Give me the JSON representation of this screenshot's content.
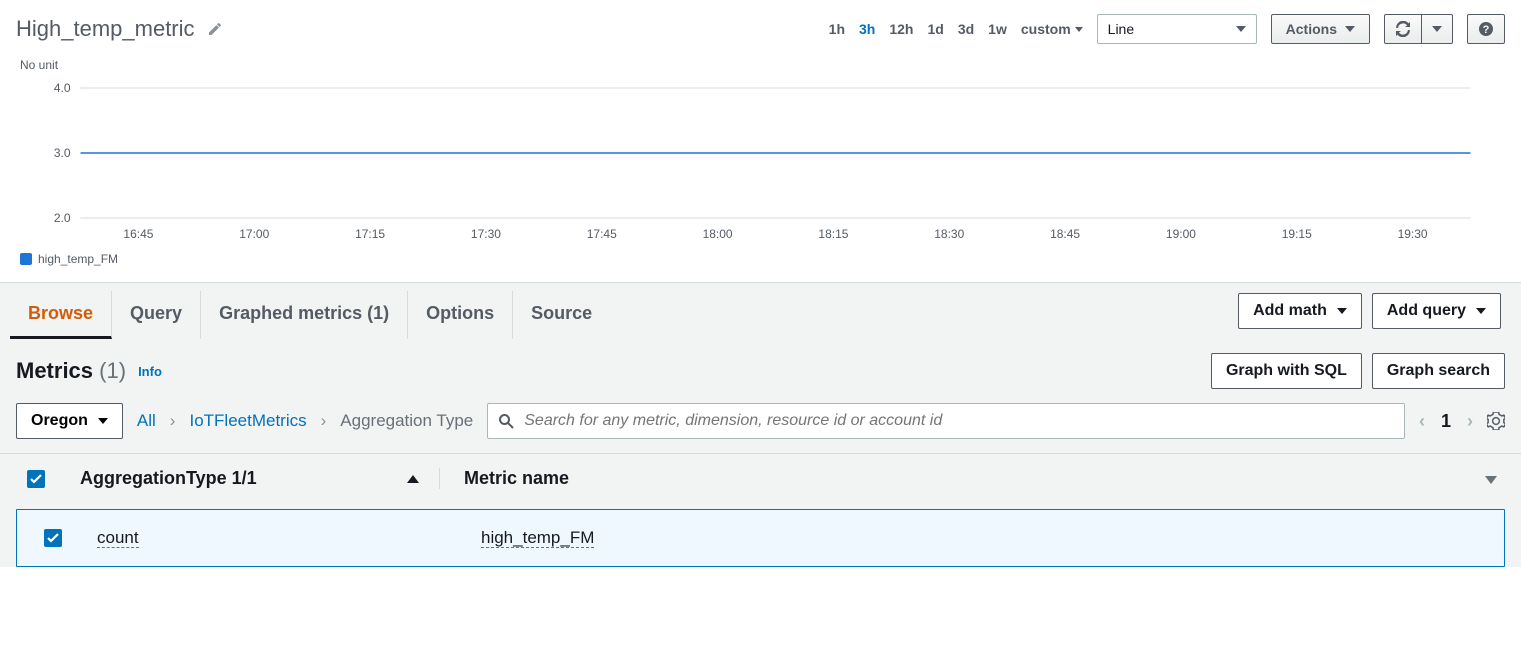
{
  "header": {
    "title": "High_temp_metric",
    "time_ranges": [
      "1h",
      "3h",
      "12h",
      "1d",
      "3d",
      "1w"
    ],
    "active_range": "3h",
    "custom_label": "custom",
    "graph_type": "Line",
    "actions_label": "Actions"
  },
  "chart": {
    "no_unit_label": "No unit",
    "ylim": [
      2.0,
      4.0
    ],
    "yticks": [
      2.0,
      3.0,
      4.0
    ],
    "xticks": [
      "16:45",
      "17:00",
      "17:15",
      "17:30",
      "17:45",
      "18:00",
      "18:15",
      "18:30",
      "18:45",
      "19:00",
      "19:15",
      "19:30"
    ],
    "series": [
      {
        "name": "high_temp_FM",
        "color": "#2074d5",
        "value": 3.0
      }
    ],
    "grid_color": "#d5dbdb",
    "axis_color": "#aab7b8",
    "label_color": "#545b64",
    "background": "#ffffff"
  },
  "tabs": {
    "items": [
      "Browse",
      "Query",
      "Graphed metrics (1)",
      "Options",
      "Source"
    ],
    "active": 0,
    "add_math": "Add math",
    "add_query": "Add query"
  },
  "metrics": {
    "title": "Metrics",
    "count": "(1)",
    "info": "Info",
    "graph_sql": "Graph with SQL",
    "graph_search": "Graph search",
    "region": "Oregon",
    "breadcrumb": {
      "all": "All",
      "ns": "IoTFleetMetrics",
      "dim": "Aggregation Type"
    },
    "search_placeholder": "Search for any metric, dimension, resource id or account id",
    "page": "1",
    "columns": {
      "agg": "AggregationType 1/1",
      "metric": "Metric name"
    },
    "row": {
      "agg": "count",
      "metric": "high_temp_FM"
    }
  }
}
